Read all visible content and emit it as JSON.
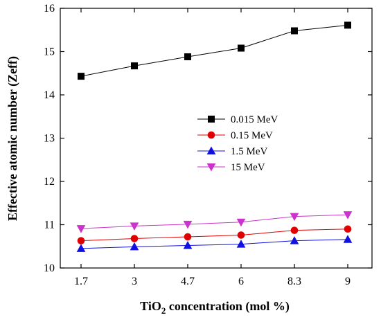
{
  "chart_data": {
    "type": "line",
    "x_categories": [
      "1.7",
      "3",
      "4.7",
      "6",
      "8.3",
      "9"
    ],
    "xlabel_parts": {
      "prefix": "TiO",
      "subscript": "2",
      "suffix": " concentration (mol %)"
    },
    "ylabel": "Effective atomic number (Zeff)",
    "ylim": [
      10,
      16
    ],
    "yticks": [
      10,
      11,
      12,
      13,
      14,
      15,
      16
    ],
    "grid": false,
    "legend_position": "center",
    "series": [
      {
        "name": "0.015 MeV",
        "color": "#000000",
        "marker": "square",
        "values": [
          14.43,
          14.67,
          14.88,
          15.08,
          15.48,
          15.61
        ]
      },
      {
        "name": "0.15 MeV",
        "color": "#e00000",
        "marker": "circle",
        "values": [
          10.63,
          10.68,
          10.72,
          10.76,
          10.87,
          10.9
        ]
      },
      {
        "name": "1.5 MeV",
        "color": "#1010e0",
        "marker": "triangle-up",
        "values": [
          10.45,
          10.49,
          10.52,
          10.55,
          10.63,
          10.66
        ]
      },
      {
        "name": "15 MeV",
        "color": "#cc33cc",
        "marker": "triangle-down",
        "values": [
          10.91,
          10.97,
          11.01,
          11.06,
          11.19,
          11.23
        ]
      }
    ]
  }
}
